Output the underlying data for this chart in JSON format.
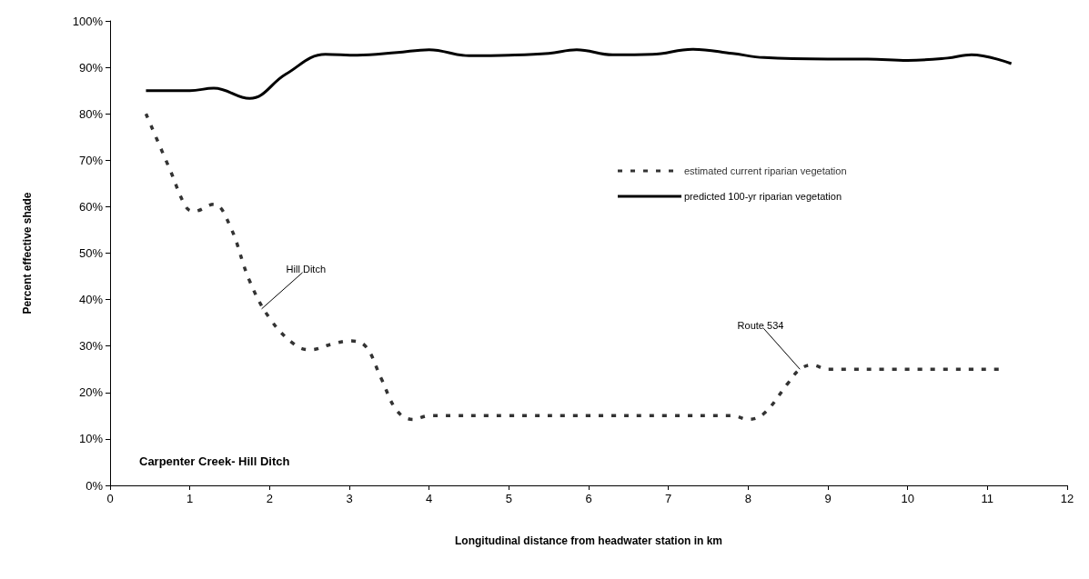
{
  "chart_data": {
    "type": "line",
    "title": "Carpenter Creek- Hill Ditch",
    "xlabel": "Longitudinal distance from headwater station in km",
    "ylabel": "Percent effective shade",
    "xlim": [
      0,
      12
    ],
    "xticks": [
      0,
      1,
      2,
      3,
      4,
      5,
      6,
      7,
      8,
      9,
      10,
      11,
      12
    ],
    "ylim": [
      0,
      100
    ],
    "yticks": [
      {
        "value": 0,
        "label": "0%"
      },
      {
        "value": 10,
        "label": "10%"
      },
      {
        "value": 20,
        "label": "20%"
      },
      {
        "value": 30,
        "label": "30%"
      },
      {
        "value": 40,
        "label": "40%"
      },
      {
        "value": 50,
        "label": "50%"
      },
      {
        "value": 60,
        "label": "60%"
      },
      {
        "value": 70,
        "label": "70%"
      },
      {
        "value": 80,
        "label": "80%"
      },
      {
        "value": 90,
        "label": "90%"
      },
      {
        "value": 100,
        "label": "100%"
      }
    ],
    "legend": "right",
    "grid": false,
    "marker": "none",
    "series": [
      {
        "name": "estimated current riparian vegetation",
        "color": "#333333",
        "line_style": "dashed",
        "x": [
          0.45,
          0.75,
          0.95,
          1.05,
          1.3,
          1.5,
          1.75,
          2.0,
          2.3,
          2.5,
          2.8,
          3.0,
          3.2,
          3.4,
          3.6,
          3.8,
          4.0,
          5.0,
          6.0,
          7.0,
          7.8,
          8.0,
          8.2,
          8.5,
          8.65,
          8.8,
          9.0,
          10.0,
          11.15
        ],
        "values": [
          80,
          68,
          60,
          59,
          60.5,
          56,
          44,
          36,
          30.5,
          29.2,
          30.5,
          31.1,
          30,
          23,
          16,
          14.2,
          15,
          15,
          15,
          15,
          15,
          14.2,
          15.5,
          22,
          25,
          25.9,
          25,
          25,
          25
        ]
      },
      {
        "name": "predicted 100-yr riparian vegetation",
        "color": "#000000",
        "line_style": "solid",
        "x": [
          0.45,
          1.0,
          1.3,
          1.75,
          2.2,
          2.7,
          3.1,
          3.6,
          4.0,
          4.5,
          5.0,
          5.5,
          5.85,
          6.3,
          6.8,
          7.3,
          7.8,
          8.2,
          9.0,
          9.5,
          10.0,
          10.5,
          10.8,
          11.3
        ],
        "values": [
          85,
          85,
          85.5,
          83.3,
          88.5,
          92.8,
          92.6,
          93.2,
          93.8,
          92.5,
          92.6,
          93,
          93.8,
          92.7,
          92.8,
          93.9,
          93,
          92.1,
          91.8,
          91.8,
          91.5,
          92,
          92.7,
          90.8
        ]
      }
    ],
    "annotations": [
      {
        "text": "Hill Ditch",
        "x": 1.9,
        "y": 38
      },
      {
        "text": "Route 534",
        "x": 8.65,
        "y": 25
      }
    ]
  }
}
